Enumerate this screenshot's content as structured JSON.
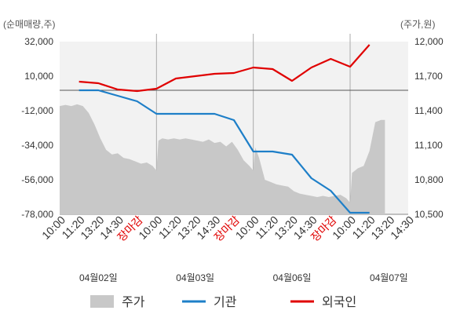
{
  "chart_data": {
    "type": "line",
    "left_axis_unit": "(순매매량,주)",
    "right_axis_unit": "(주가,원)",
    "y_left": {
      "ticks": [
        "32,000",
        "10,000",
        "-12,000",
        "-34,000",
        "-56,000",
        "-78,000"
      ],
      "ylim": [
        -78000,
        32000
      ]
    },
    "y_right": {
      "ticks": [
        "12,000",
        "11,700",
        "11,400",
        "11,100",
        "10,800",
        "10,500"
      ],
      "ylim": [
        10500,
        12000
      ]
    },
    "x_tick_labels": [
      {
        "text": "10:00",
        "highlight": false
      },
      {
        "text": "11:20",
        "highlight": false
      },
      {
        "text": "13:20",
        "highlight": false
      },
      {
        "text": "14:30",
        "highlight": false
      },
      {
        "text": "장마감",
        "highlight": true
      },
      {
        "text": "10:00",
        "highlight": false
      },
      {
        "text": "11:20",
        "highlight": false
      },
      {
        "text": "13:20",
        "highlight": false
      },
      {
        "text": "14:30",
        "highlight": false
      },
      {
        "text": "장마감",
        "highlight": true
      },
      {
        "text": "10:00",
        "highlight": false
      },
      {
        "text": "11:20",
        "highlight": false
      },
      {
        "text": "13:20",
        "highlight": false
      },
      {
        "text": "14:30",
        "highlight": false
      },
      {
        "text": "장마감",
        "highlight": true
      },
      {
        "text": "10:00",
        "highlight": false
      },
      {
        "text": "11:20",
        "highlight": false
      },
      {
        "text": "13:20",
        "highlight": false
      },
      {
        "text": "14:30",
        "highlight": false
      }
    ],
    "dates": [
      "04월02일",
      "04월03일",
      "04월06일",
      "04월07일"
    ],
    "x_range": [
      0,
      18
    ],
    "dividers_at": [
      5,
      10,
      15
    ],
    "legend": [
      {
        "label": "주가",
        "kind": "area",
        "color": "#c8c8c8"
      },
      {
        "label": "기관",
        "kind": "line",
        "color": "#1e7fc8"
      },
      {
        "label": "외국인",
        "kind": "line",
        "color": "#e00000"
      }
    ],
    "series": [
      {
        "name": "주가",
        "axis": "right",
        "color": "#c8c8c8",
        "points": [
          [
            0.0,
            11440
          ],
          [
            0.3,
            11450
          ],
          [
            0.6,
            11440
          ],
          [
            0.9,
            11455
          ],
          [
            1.2,
            11440
          ],
          [
            1.5,
            11380
          ],
          [
            1.8,
            11280
          ],
          [
            2.1,
            11160
          ],
          [
            2.4,
            11060
          ],
          [
            2.7,
            11020
          ],
          [
            3.0,
            11030
          ],
          [
            3.3,
            10990
          ],
          [
            3.6,
            10980
          ],
          [
            3.9,
            10960
          ],
          [
            4.2,
            10940
          ],
          [
            4.5,
            10950
          ],
          [
            4.8,
            10920
          ],
          [
            5.0,
            10880
          ],
          [
            5.1,
            11140
          ],
          [
            5.3,
            11160
          ],
          [
            5.6,
            11150
          ],
          [
            5.9,
            11160
          ],
          [
            6.2,
            11150
          ],
          [
            6.5,
            11160
          ],
          [
            6.8,
            11150
          ],
          [
            7.1,
            11140
          ],
          [
            7.4,
            11130
          ],
          [
            7.7,
            11150
          ],
          [
            8.0,
            11120
          ],
          [
            8.3,
            11130
          ],
          [
            8.6,
            11090
          ],
          [
            8.9,
            11130
          ],
          [
            9.2,
            11060
          ],
          [
            9.5,
            10970
          ],
          [
            9.8,
            10920
          ],
          [
            10.0,
            10880
          ],
          [
            10.1,
            11080
          ],
          [
            10.3,
            10990
          ],
          [
            10.6,
            10800
          ],
          [
            10.9,
            10780
          ],
          [
            11.2,
            10760
          ],
          [
            11.5,
            10750
          ],
          [
            11.8,
            10740
          ],
          [
            12.1,
            10700
          ],
          [
            12.4,
            10680
          ],
          [
            12.7,
            10670
          ],
          [
            13.0,
            10660
          ],
          [
            13.3,
            10650
          ],
          [
            13.6,
            10660
          ],
          [
            13.9,
            10650
          ],
          [
            14.2,
            10660
          ],
          [
            14.5,
            10670
          ],
          [
            14.8,
            10640
          ],
          [
            15.0,
            10600
          ],
          [
            15.1,
            10860
          ],
          [
            15.4,
            10900
          ],
          [
            15.7,
            10920
          ],
          [
            16.0,
            11050
          ],
          [
            16.3,
            11300
          ],
          [
            16.6,
            11320
          ],
          [
            16.8,
            11320
          ]
        ]
      },
      {
        "name": "기관",
        "axis": "left",
        "color": "#1e7fc8",
        "points": [
          [
            1,
            1000
          ],
          [
            2,
            1000
          ],
          [
            3,
            -2500
          ],
          [
            4,
            -6000
          ],
          [
            5,
            -14000
          ],
          [
            6,
            -14000
          ],
          [
            7,
            -14000
          ],
          [
            8,
            -14000
          ],
          [
            9,
            -18000
          ],
          [
            10,
            -38000
          ],
          [
            11,
            -38000
          ],
          [
            12,
            -40000
          ],
          [
            13,
            -55000
          ],
          [
            14,
            -63000
          ],
          [
            15,
            -77000
          ],
          [
            16,
            -77000
          ]
        ]
      },
      {
        "name": "외국인",
        "axis": "left",
        "color": "#e00000",
        "points": [
          [
            1,
            6500
          ],
          [
            2,
            5500
          ],
          [
            3,
            1500
          ],
          [
            4,
            500
          ],
          [
            5,
            2000
          ],
          [
            6,
            8500
          ],
          [
            7,
            10000
          ],
          [
            8,
            11500
          ],
          [
            9,
            12000
          ],
          [
            10,
            15500
          ],
          [
            11,
            14500
          ],
          [
            12,
            7000
          ],
          [
            13,
            15500
          ],
          [
            14,
            21000
          ],
          [
            15,
            16000
          ],
          [
            16,
            30000
          ]
        ]
      }
    ]
  }
}
